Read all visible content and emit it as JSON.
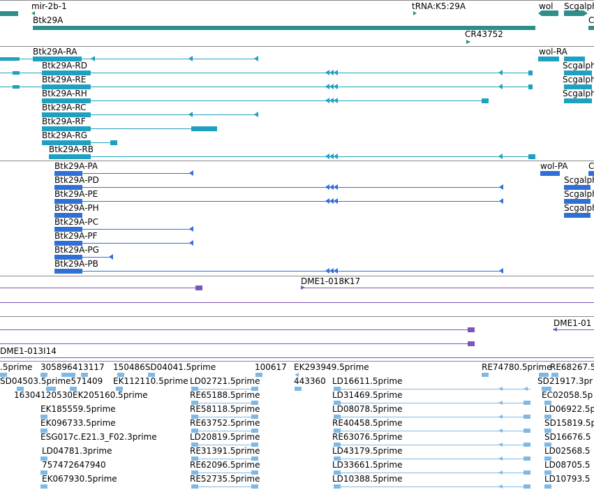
{
  "colors": {
    "gene": "#2e8e8c",
    "tx_gene": "#1fa0c0",
    "tx_protein": "#2f70d6",
    "clone": "#7c55b8",
    "est": "#7fb8e3",
    "divider": "#888888",
    "text": "#000000"
  },
  "gene_track": {
    "labels": [
      "mir-2b-1",
      "tRNA:K5:29A",
      "wol",
      "Scgalph",
      "Btk29A",
      "C",
      "CR43752"
    ]
  },
  "transcript_track": {
    "labels": [
      "Btk29A-RA",
      "wol-RA",
      "Btk29A-RD",
      "Scgalph",
      "Btk29A-RE",
      "Scgalph",
      "Btk29A-RH",
      "Scgalph",
      "Btk29A-RC",
      "Btk29A-RF",
      "Btk29A-RG",
      "Btk29A-RB"
    ]
  },
  "protein_track": {
    "labels": [
      "Btk29A-PA",
      "wol-PA",
      "C",
      "Btk29A-PD",
      "Scgalph",
      "Btk29A-PE",
      "Scgalph",
      "Btk29A-PH",
      "Scgalph",
      "Btk29A-PC",
      "Btk29A-PF",
      "Btk29A-PG",
      "Btk29A-PB"
    ]
  },
  "clone_track": {
    "labels": [
      "DME1-018K17",
      "DME1-01",
      "DME1-013I14"
    ]
  },
  "est_track": {
    "labels": [
      ".5prime",
      "305896413117",
      "150486SD04041.5prime",
      "100617",
      "EK293949.5prime",
      "RE74780.5prime",
      "RE68267.5",
      "SD04503.5prime571409",
      "EK112110.5prime",
      "LD02721.5prime",
      "443360",
      "LD16611.5prime",
      "SD21917.3pr",
      "16304120530EK205160.5prime",
      "RE65188.5prime",
      "LD31469.5prime",
      "EC02058.5p",
      "EK185559.5prime",
      "RE58118.5prime",
      "LD08078.5prime",
      "LD06922.5p",
      "EK096733.5prime",
      "RE63752.5prime",
      "RE40458.5prime",
      "SD15819.5p",
      "ESG017c.E21.3_F02.3prime",
      "LD20819.5prime",
      "RE63076.5prime",
      "SD16676.5",
      "LD04781.3prime",
      "RE31391.5prime",
      "LD43179.5prime",
      "LD02568.5",
      "757472647940",
      "RE62096.5prime",
      "LD33661.5prime",
      "LD08705.5",
      "EK067930.5prime",
      "RE52735.5prime",
      "LD10388.5prime",
      "LD10793.5"
    ]
  }
}
